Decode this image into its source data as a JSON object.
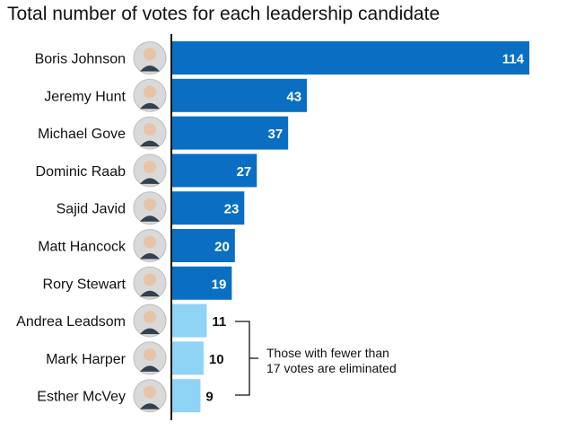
{
  "title": "Total number of votes for each leadership candidate",
  "colors": {
    "above_threshold": "#0a6fc2",
    "below_threshold": "#8fd3f5",
    "axis": "#111111"
  },
  "annotation": {
    "line1": "Those with fewer than",
    "line2": "17 votes are eliminated"
  },
  "chart_data": {
    "type": "bar",
    "orientation": "horizontal",
    "title": "Total number of votes for each leadership candidate",
    "threshold": 17,
    "categories": [
      "Boris Johnson",
      "Jeremy Hunt",
      "Michael Gove",
      "Dominic Raab",
      "Sajid Javid",
      "Matt Hancock",
      "Rory Stewart",
      "Andrea Leadsom",
      "Mark Harper",
      "Esther McVey"
    ],
    "values": [
      114,
      43,
      37,
      27,
      23,
      20,
      19,
      11,
      10,
      9
    ],
    "data_labels": [
      "114",
      "43",
      "37",
      "27",
      "23",
      "20",
      "19",
      "11",
      "10",
      "9"
    ],
    "xlim": [
      0,
      114
    ],
    "grid": false,
    "legend": "none"
  }
}
